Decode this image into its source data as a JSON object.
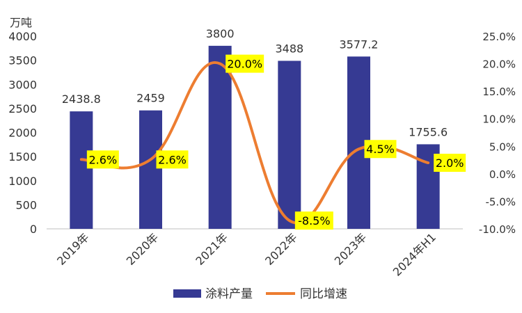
{
  "chart_data": {
    "type": "bar",
    "ylabel": "万吨",
    "categories": [
      "2019年",
      "2020年",
      "2021年",
      "2022年",
      "2023年",
      "2024年H1"
    ],
    "series": [
      {
        "name": "涂料产量",
        "kind": "bar",
        "axis": "left",
        "color": "#363a93",
        "values": [
          2438.8,
          2459,
          3800,
          3488,
          3577.2,
          1755.6
        ],
        "labels": [
          "2438.8",
          "2459",
          "3800",
          "3488",
          "3577.2",
          "1755.6"
        ]
      },
      {
        "name": "同比增速",
        "kind": "line",
        "axis": "right",
        "smooth": true,
        "color": "#ed7d31",
        "values": [
          2.6,
          2.6,
          20.0,
          -8.5,
          4.5,
          2.0
        ],
        "labels": [
          "2.6%",
          "2.6%",
          "20.0%",
          "-8.5%",
          "4.5%",
          "2.0%"
        ],
        "label_background": "#ffff00"
      }
    ],
    "y_left": {
      "min": 0,
      "max": 4000,
      "ticks": [
        "0",
        "500",
        "1000",
        "1500",
        "2000",
        "2500",
        "3000",
        "3500",
        "4000"
      ]
    },
    "y_right": {
      "min": -10,
      "max": 25,
      "ticks": [
        "-10.0%",
        "-5.0%",
        "0.0%",
        "5.0%",
        "10.0%",
        "15.0%",
        "20.0%",
        "25.0%"
      ]
    },
    "grid": false,
    "legend": "bottom"
  }
}
